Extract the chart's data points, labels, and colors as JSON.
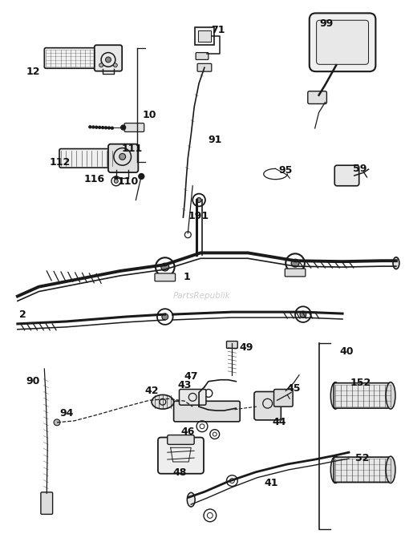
{
  "bg_color": "#ffffff",
  "lc": "#1a1a1a",
  "lc_light": "#555555",
  "watermark": "PartsRepublik",
  "fig_w": 5.05,
  "fig_h": 6.76,
  "dpi": 100
}
